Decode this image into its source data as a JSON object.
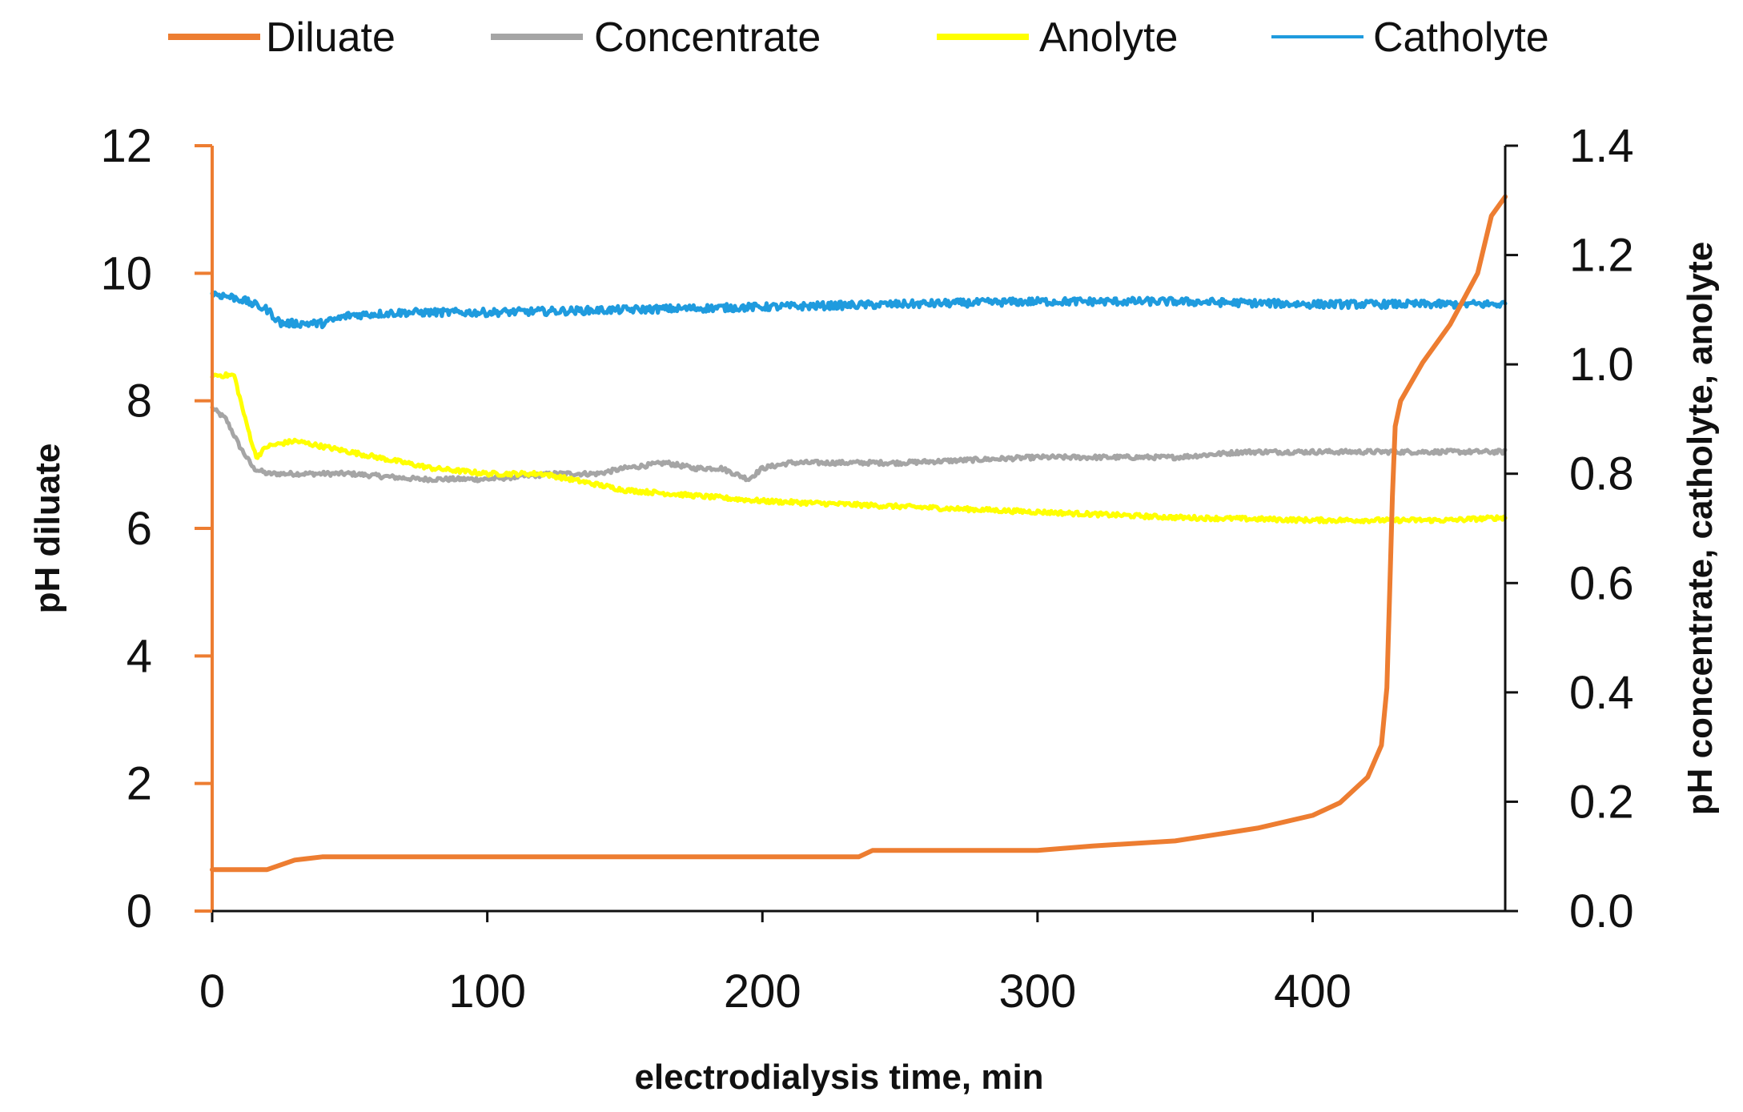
{
  "chart_data": {
    "type": "line",
    "title": "",
    "xlabel": "electrodialysis time, min",
    "ylabel_left": "pH diluate",
    "ylabel_right": "pH concentrate, catholyte, anolyte",
    "xlim": [
      0,
      470
    ],
    "ylim_left": [
      0,
      12
    ],
    "ylim_right": [
      0.0,
      1.4
    ],
    "x_ticks": [
      "0",
      "100",
      "200",
      "300",
      "400"
    ],
    "y_left_ticks": [
      "0",
      "2",
      "4",
      "6",
      "8",
      "10",
      "12"
    ],
    "y_right_ticks": [
      "0.0",
      "0.2",
      "0.4",
      "0.6",
      "0.8",
      "1.0",
      "1.2",
      "1.4"
    ],
    "grid": false,
    "legend_position": "top",
    "series": [
      {
        "name": "Diluate",
        "axis": "left",
        "color": "#ED7D31",
        "points": [
          [
            0,
            0.65
          ],
          [
            20,
            0.65
          ],
          [
            30,
            0.8
          ],
          [
            40,
            0.85
          ],
          [
            100,
            0.85
          ],
          [
            200,
            0.85
          ],
          [
            235,
            0.85
          ],
          [
            240,
            0.95
          ],
          [
            300,
            0.95
          ],
          [
            320,
            1.02
          ],
          [
            350,
            1.1
          ],
          [
            380,
            1.3
          ],
          [
            400,
            1.5
          ],
          [
            410,
            1.7
          ],
          [
            420,
            2.1
          ],
          [
            425,
            2.6
          ],
          [
            427,
            3.5
          ],
          [
            428,
            5.0
          ],
          [
            429,
            6.5
          ],
          [
            430,
            7.6
          ],
          [
            432,
            8.0
          ],
          [
            440,
            8.6
          ],
          [
            450,
            9.2
          ],
          [
            460,
            10.0
          ],
          [
            465,
            10.9
          ],
          [
            470,
            11.2
          ]
        ]
      },
      {
        "name": "Concentrate",
        "axis": "right",
        "color": "#A5A5A5",
        "points": [
          [
            0,
            0.92
          ],
          [
            5,
            0.9
          ],
          [
            10,
            0.85
          ],
          [
            15,
            0.81
          ],
          [
            20,
            0.8
          ],
          [
            50,
            0.8
          ],
          [
            75,
            0.79
          ],
          [
            100,
            0.79
          ],
          [
            125,
            0.8
          ],
          [
            140,
            0.8
          ],
          [
            150,
            0.81
          ],
          [
            165,
            0.82
          ],
          [
            175,
            0.81
          ],
          [
            185,
            0.81
          ],
          [
            195,
            0.79
          ],
          [
            200,
            0.81
          ],
          [
            210,
            0.82
          ],
          [
            250,
            0.82
          ],
          [
            300,
            0.83
          ],
          [
            350,
            0.83
          ],
          [
            375,
            0.84
          ],
          [
            400,
            0.84
          ],
          [
            430,
            0.84
          ],
          [
            470,
            0.84
          ]
        ]
      },
      {
        "name": "Anolyte",
        "axis": "right",
        "color": "#FFFF00",
        "points": [
          [
            0,
            0.98
          ],
          [
            8,
            0.98
          ],
          [
            12,
            0.9
          ],
          [
            16,
            0.83
          ],
          [
            20,
            0.85
          ],
          [
            30,
            0.86
          ],
          [
            40,
            0.85
          ],
          [
            60,
            0.83
          ],
          [
            80,
            0.81
          ],
          [
            100,
            0.8
          ],
          [
            120,
            0.8
          ],
          [
            140,
            0.78
          ],
          [
            150,
            0.77
          ],
          [
            175,
            0.76
          ],
          [
            200,
            0.75
          ],
          [
            250,
            0.74
          ],
          [
            300,
            0.73
          ],
          [
            350,
            0.72
          ],
          [
            400,
            0.715
          ],
          [
            450,
            0.715
          ],
          [
            470,
            0.72
          ]
        ]
      },
      {
        "name": "Catholyte",
        "axis": "right",
        "color": "#1F9BDE",
        "points": [
          [
            0,
            1.13
          ],
          [
            10,
            1.12
          ],
          [
            20,
            1.1
          ],
          [
            25,
            1.075
          ],
          [
            35,
            1.075
          ],
          [
            40,
            1.075
          ],
          [
            50,
            1.09
          ],
          [
            70,
            1.095
          ],
          [
            100,
            1.095
          ],
          [
            150,
            1.1
          ],
          [
            200,
            1.105
          ],
          [
            250,
            1.11
          ],
          [
            300,
            1.115
          ],
          [
            350,
            1.115
          ],
          [
            400,
            1.11
          ],
          [
            450,
            1.11
          ],
          [
            470,
            1.11
          ]
        ]
      }
    ]
  }
}
